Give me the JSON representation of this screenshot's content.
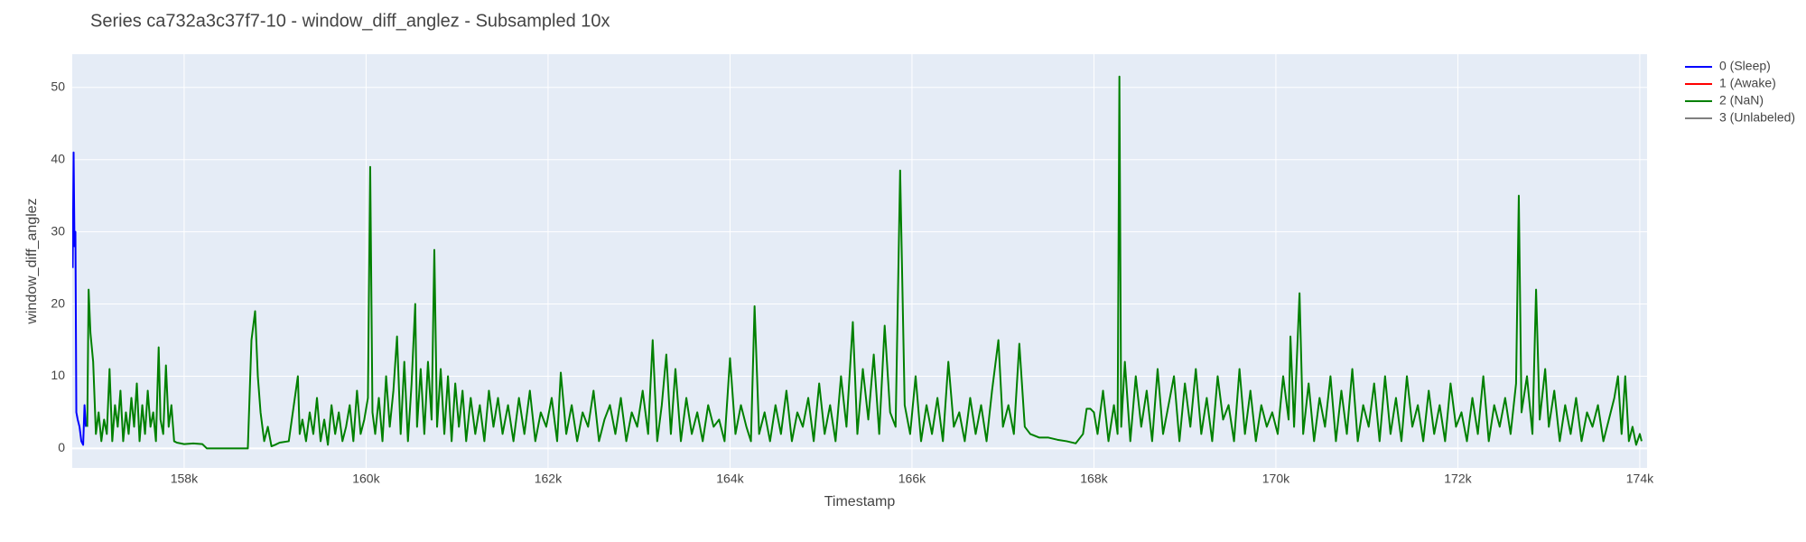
{
  "chart_data": {
    "type": "line",
    "title": "Series ca732a3c37f7-10 - window_diff_anglez - Subsampled 10x",
    "x_label": "Timestamp",
    "y_label": "window_diff_anglez",
    "xlim": [
      156770,
      174080
    ],
    "ylim": [
      -2.7,
      54.6
    ],
    "xticks": [
      {
        "value": 158000,
        "label": "158k"
      },
      {
        "value": 160000,
        "label": "160k"
      },
      {
        "value": 162000,
        "label": "162k"
      },
      {
        "value": 164000,
        "label": "164k"
      },
      {
        "value": 166000,
        "label": "166k"
      },
      {
        "value": 168000,
        "label": "168k"
      },
      {
        "value": 170000,
        "label": "170k"
      },
      {
        "value": 172000,
        "label": "172k"
      },
      {
        "value": 174000,
        "label": "174k"
      }
    ],
    "yticks": [
      0,
      10,
      20,
      30,
      40,
      50
    ],
    "grid": true,
    "legend": "right",
    "series": [
      {
        "name": "0 (Sleep)",
        "color": "#0000ff",
        "x": [
          156775,
          156785,
          156795,
          156805,
          156815,
          156830,
          156850,
          156870,
          156890,
          156905,
          156920
        ],
        "values": [
          25,
          41,
          28,
          30,
          5,
          4,
          3,
          1,
          0.5,
          6,
          3
        ]
      },
      {
        "name": "1 (Awake)",
        "color": "#ff0000",
        "x": [],
        "values": []
      },
      {
        "name": "2 (NaN)",
        "color": "#008000",
        "x": [
          156935,
          156950,
          156970,
          157000,
          157030,
          157060,
          157090,
          157120,
          157150,
          157180,
          157210,
          157240,
          157270,
          157300,
          157330,
          157360,
          157390,
          157420,
          157450,
          157480,
          157510,
          157540,
          157570,
          157600,
          157630,
          157660,
          157690,
          157720,
          157740,
          157770,
          157800,
          157830,
          157860,
          157890,
          157920,
          158000,
          158100,
          158200,
          158250,
          158700,
          158740,
          158780,
          158810,
          158840,
          158880,
          158920,
          158960,
          159000,
          159050,
          159150,
          159250,
          159270,
          159300,
          159340,
          159380,
          159420,
          159460,
          159500,
          159540,
          159580,
          159620,
          159660,
          159700,
          159740,
          159780,
          159820,
          159860,
          159900,
          159940,
          159980,
          160020,
          160045,
          160070,
          160100,
          160140,
          160180,
          160220,
          160260,
          160300,
          160340,
          160380,
          160420,
          160460,
          160500,
          160540,
          160560,
          160600,
          160640,
          160680,
          160720,
          160750,
          160780,
          160820,
          160860,
          160900,
          160940,
          160980,
          161020,
          161060,
          161100,
          161150,
          161200,
          161250,
          161300,
          161350,
          161400,
          161450,
          161500,
          161560,
          161620,
          161680,
          161740,
          161800,
          161860,
          161920,
          161980,
          162040,
          162100,
          162140,
          162200,
          162260,
          162320,
          162380,
          162440,
          162500,
          162560,
          162620,
          162680,
          162740,
          162800,
          162860,
          162920,
          162980,
          163040,
          163100,
          163150,
          163200,
          163250,
          163300,
          163350,
          163400,
          163460,
          163520,
          163580,
          163640,
          163700,
          163760,
          163820,
          163880,
          163940,
          164000,
          164060,
          164120,
          164180,
          164230,
          164270,
          164320,
          164380,
          164440,
          164500,
          164560,
          164620,
          164680,
          164740,
          164800,
          164860,
          164920,
          164980,
          165040,
          165100,
          165160,
          165220,
          165280,
          165350,
          165400,
          165460,
          165520,
          165580,
          165640,
          165700,
          165760,
          165820,
          165870,
          165920,
          165980,
          166040,
          166100,
          166160,
          166220,
          166280,
          166340,
          166400,
          166460,
          166520,
          166580,
          166640,
          166700,
          166760,
          166820,
          166880,
          166950,
          167000,
          167060,
          167120,
          167180,
          167240,
          167300,
          167400,
          167500,
          167600,
          167700,
          167800,
          167880,
          167920,
          167960,
          168000,
          168040,
          168100,
          168160,
          168220,
          168260,
          168280,
          168300,
          168340,
          168400,
          168460,
          168520,
          168580,
          168640,
          168700,
          168760,
          168820,
          168880,
          168940,
          169000,
          169060,
          169120,
          169180,
          169240,
          169300,
          169360,
          169420,
          169480,
          169540,
          169600,
          169660,
          169720,
          169780,
          169840,
          169900,
          169960,
          170020,
          170080,
          170140,
          170160,
          170200,
          170260,
          170300,
          170360,
          170420,
          170480,
          170540,
          170600,
          170660,
          170720,
          170780,
          170840,
          170900,
          170960,
          171020,
          171080,
          171140,
          171200,
          171260,
          171320,
          171380,
          171440,
          171500,
          171560,
          171620,
          171680,
          171740,
          171800,
          171860,
          171920,
          171980,
          172040,
          172100,
          172160,
          172220,
          172280,
          172340,
          172400,
          172460,
          172520,
          172580,
          172640,
          172670,
          172700,
          172760,
          172820,
          172860,
          172900,
          172960,
          173000,
          173060,
          173120,
          173180,
          173240,
          173300,
          173360,
          173420,
          173480,
          173540,
          173600,
          173660,
          173720,
          173760,
          173800,
          173840,
          173880,
          173920,
          173960,
          174000,
          174020
        ],
        "values": [
          3,
          22,
          16,
          12,
          2,
          5,
          1,
          4,
          2,
          11,
          1,
          6,
          3,
          8,
          1,
          5,
          2,
          7,
          3,
          9,
          1,
          6,
          2,
          8,
          3,
          5,
          1,
          14,
          4,
          2,
          11.5,
          3,
          6,
          1,
          0.8,
          0.6,
          0.7,
          0.6,
          0,
          0,
          15,
          19,
          10,
          5,
          1,
          3,
          0.3,
          0.5,
          0.8,
          1,
          10,
          2,
          4,
          1,
          5,
          2,
          7,
          1,
          4,
          0.5,
          6,
          2,
          5,
          1,
          3,
          6,
          1,
          8,
          2,
          4,
          7,
          39,
          5,
          2,
          7,
          1,
          10,
          3,
          8,
          15.5,
          2,
          12,
          1,
          9,
          20,
          3,
          11,
          2,
          12,
          4,
          27.5,
          3,
          11,
          2,
          10,
          1,
          9,
          3,
          8,
          1,
          7,
          2,
          6,
          1,
          8,
          3,
          7,
          2,
          6,
          1,
          7,
          2,
          8,
          1,
          5,
          3,
          7,
          1,
          10.5,
          2,
          6,
          1,
          5,
          3,
          8,
          1,
          4,
          6,
          2,
          7,
          1,
          5,
          3,
          8,
          2,
          15,
          1,
          6,
          13,
          2,
          11,
          1,
          7,
          2,
          5,
          1,
          6,
          3,
          4,
          1,
          12.5,
          2,
          6,
          3,
          1,
          19.7,
          2,
          5,
          1,
          6,
          2,
          8,
          1,
          5,
          3,
          7,
          1,
          9,
          2,
          6,
          1,
          10,
          3,
          17.5,
          2,
          11,
          4,
          13,
          2,
          17,
          5,
          3,
          38.5,
          6,
          2,
          10,
          1,
          6,
          2,
          7,
          1,
          12,
          3,
          5,
          1,
          7,
          2,
          6,
          1,
          8,
          15,
          3,
          6,
          2,
          14.5,
          3,
          2,
          1.5,
          1.5,
          1.2,
          1,
          0.7,
          2,
          5.5,
          5.5,
          5,
          2,
          8,
          1,
          6,
          2,
          51.5,
          3,
          12,
          1,
          10,
          3,
          8,
          1,
          11,
          2,
          6,
          10,
          1,
          9,
          3,
          11,
          2,
          7,
          1,
          10,
          4,
          6,
          1,
          11,
          2,
          8,
          1,
          6,
          3,
          5,
          2,
          10,
          4,
          15.5,
          3,
          21.5,
          2,
          9,
          1,
          7,
          3,
          10,
          1,
          8,
          2,
          11,
          1,
          6,
          3,
          9,
          1,
          10,
          2,
          7,
          1,
          10,
          3,
          6,
          1,
          8,
          2,
          6,
          1,
          9,
          3,
          5,
          1,
          7,
          2,
          10,
          1,
          6,
          3,
          7,
          2,
          9,
          35,
          5,
          10,
          2,
          22,
          4,
          11,
          3,
          8,
          1,
          6,
          2,
          7,
          1,
          5,
          3,
          6,
          1,
          4,
          7,
          10,
          2,
          10,
          1,
          3,
          0.5,
          2,
          1
        ]
      },
      {
        "name": "3 (Unlabeled)",
        "color": "#808080",
        "x": [],
        "values": []
      }
    ]
  }
}
